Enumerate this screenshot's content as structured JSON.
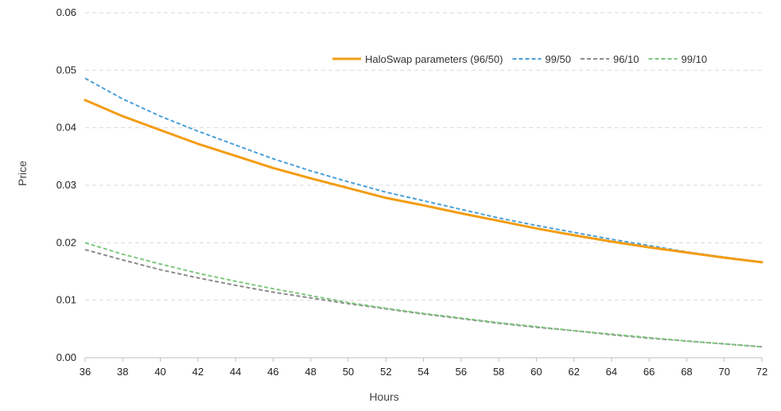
{
  "chart_data": {
    "type": "line",
    "title": "",
    "xlabel": "Hours",
    "ylabel": "Price",
    "xlim": [
      36,
      72
    ],
    "ylim": [
      0,
      0.06
    ],
    "x_ticks": [
      "36",
      "38",
      "40",
      "42",
      "44",
      "46",
      "48",
      "50",
      "52",
      "54",
      "56",
      "58",
      "60",
      "62",
      "64",
      "66",
      "68",
      "70",
      "72"
    ],
    "y_ticks": [
      "0.00",
      "0.01",
      "0.02",
      "0.03",
      "0.04",
      "0.05",
      "0.06"
    ],
    "grid": true,
    "legend_position": "top-right",
    "x": [
      36,
      38,
      40,
      42,
      44,
      46,
      48,
      50,
      52,
      54,
      56,
      58,
      60,
      62,
      64,
      66,
      68,
      70,
      72
    ],
    "series": [
      {
        "name": "HaloSwap parameters (96/50)",
        "color": "#f39c12",
        "dashed": false,
        "values": [
          0.0448,
          0.042,
          0.0396,
          0.0372,
          0.0351,
          0.033,
          0.0312,
          0.0295,
          0.0278,
          0.0265,
          0.0251,
          0.0238,
          0.0225,
          0.0213,
          0.0202,
          0.0192,
          0.0183,
          0.0174,
          0.0166
        ]
      },
      {
        "name": "99/50",
        "color": "#4a9fd8",
        "dashed": true,
        "values": [
          0.0486,
          0.045,
          0.042,
          0.0394,
          0.037,
          0.0346,
          0.0325,
          0.0306,
          0.0288,
          0.0273,
          0.0258,
          0.0243,
          0.023,
          0.0218,
          0.0206,
          0.0195,
          0.0184,
          0.0175,
          0.0166
        ]
      },
      {
        "name": "96/10",
        "color": "#8c8c8c",
        "dashed": true,
        "values": [
          0.0188,
          0.017,
          0.0153,
          0.0139,
          0.0126,
          0.0114,
          0.0104,
          0.0094,
          0.0085,
          0.0076,
          0.0068,
          0.006,
          0.0053,
          0.0047,
          0.004,
          0.0034,
          0.0029,
          0.0024,
          0.0019
        ]
      },
      {
        "name": "99/10",
        "color": "#7ec87e",
        "dashed": true,
        "values": [
          0.02,
          0.018,
          0.0163,
          0.0147,
          0.0133,
          0.012,
          0.0108,
          0.0096,
          0.0086,
          0.0077,
          0.0069,
          0.0061,
          0.0054,
          0.0047,
          0.0041,
          0.0035,
          0.0029,
          0.0024,
          0.0019
        ]
      }
    ]
  }
}
